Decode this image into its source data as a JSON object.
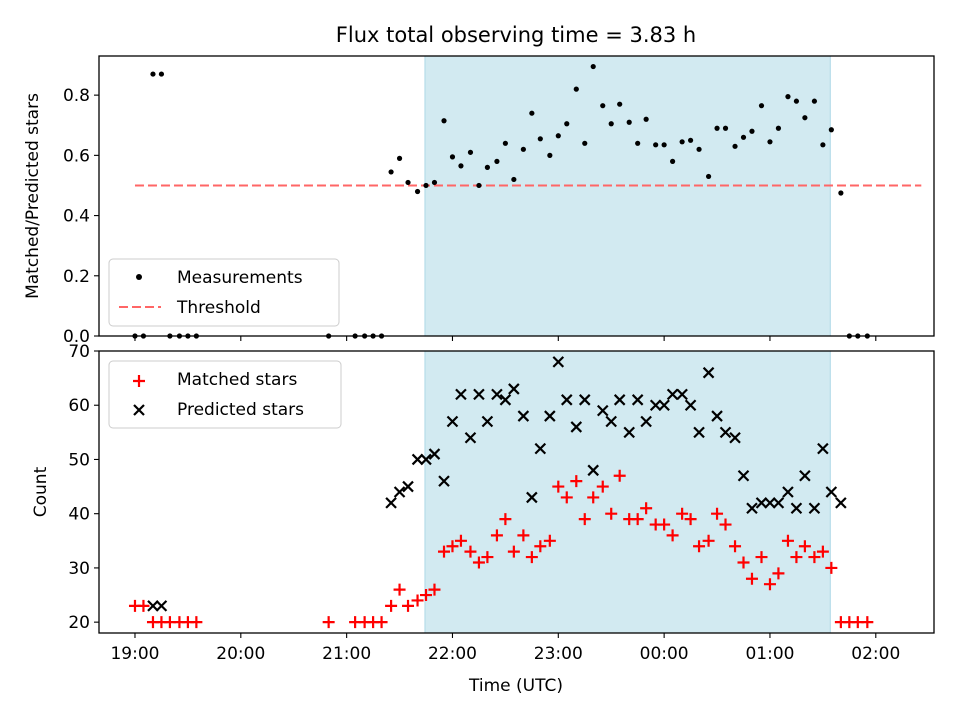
{
  "title": "Flux total observing time = 3.83 h",
  "colors": {
    "highlight": "#add8e6",
    "measurement": "#000000",
    "threshold": "#ff6666",
    "matched": "#ff0000",
    "predicted": "#000000"
  },
  "chart_data": [
    {
      "type": "scatter",
      "ylabel": "Matched/Predicted stars",
      "ylim": [
        0,
        0.93
      ],
      "yticks": [
        "0.0",
        "0.2",
        "0.4",
        "0.6",
        "0.8"
      ],
      "ytick_values": [
        0,
        0.2,
        0.4,
        0.6,
        0.8
      ],
      "xlim_hours": [
        18.66,
        26.55
      ],
      "highlight_span_hours": [
        21.74,
        25.57
      ],
      "legend": {
        "placement": "lower-left",
        "entries": [
          "Measurements",
          "Threshold"
        ]
      },
      "threshold": {
        "name": "Threshold",
        "value": 0.5,
        "x_range_hours": [
          19.0,
          26.43
        ]
      },
      "series": [
        {
          "name": "Measurements",
          "x": [
            19.0,
            19.08,
            19.17,
            19.25,
            19.33,
            19.42,
            19.5,
            19.58,
            20.83,
            21.08,
            21.17,
            21.25,
            21.33,
            21.42,
            21.5,
            21.58,
            21.67,
            21.75,
            21.83,
            21.92,
            22.0,
            22.08,
            22.17,
            22.25,
            22.33,
            22.42,
            22.5,
            22.58,
            22.67,
            22.75,
            22.83,
            22.92,
            23.0,
            23.08,
            23.17,
            23.25,
            23.33,
            23.42,
            23.5,
            23.58,
            23.67,
            23.75,
            23.83,
            23.92,
            24.0,
            24.08,
            24.17,
            24.25,
            24.33,
            24.42,
            24.5,
            24.58,
            24.67,
            24.75,
            24.83,
            24.92,
            25.0,
            25.08,
            25.17,
            25.25,
            25.33,
            25.42,
            25.5,
            25.58,
            25.67,
            25.75,
            25.83,
            25.92
          ],
          "y": [
            0,
            0,
            0.87,
            0.87,
            0,
            0,
            0,
            0,
            0,
            0,
            0,
            0,
            0,
            0.545,
            0.59,
            0.51,
            0.48,
            0.5,
            0.51,
            0.715,
            0.595,
            0.565,
            0.61,
            0.5,
            0.56,
            0.58,
            0.64,
            0.52,
            0.62,
            0.74,
            0.655,
            0.6,
            0.665,
            0.705,
            0.82,
            0.64,
            0.895,
            0.765,
            0.705,
            0.77,
            0.71,
            0.64,
            0.72,
            0.635,
            0.635,
            0.58,
            0.645,
            0.65,
            0.62,
            0.53,
            0.69,
            0.69,
            0.63,
            0.66,
            0.68,
            0.765,
            0.645,
            0.69,
            0.795,
            0.78,
            0.725,
            0.78,
            0.635,
            0.685,
            0.475,
            0,
            0,
            0
          ]
        }
      ]
    },
    {
      "type": "scatter",
      "xlabel": "Time (UTC)",
      "ylabel": "Count",
      "ylim": [
        18,
        70
      ],
      "yticks": [
        "20",
        "30",
        "40",
        "50",
        "60",
        "70"
      ],
      "ytick_values": [
        20,
        30,
        40,
        50,
        60,
        70
      ],
      "xticks": [
        "19:00",
        "20:00",
        "21:00",
        "22:00",
        "23:00",
        "00:00",
        "01:00",
        "02:00"
      ],
      "xtick_hours": [
        19,
        20,
        21,
        22,
        23,
        24,
        25,
        26
      ],
      "xlim_hours": [
        18.66,
        26.55
      ],
      "highlight_span_hours": [
        21.74,
        25.57
      ],
      "legend": {
        "placement": "upper-left",
        "entries": [
          "Matched stars",
          "Predicted stars"
        ]
      },
      "series": [
        {
          "name": "Matched stars",
          "x": [
            19.0,
            19.08,
            19.17,
            19.25,
            19.33,
            19.42,
            19.5,
            19.58,
            20.83,
            21.08,
            21.17,
            21.25,
            21.33,
            21.42,
            21.5,
            21.58,
            21.67,
            21.75,
            21.83,
            21.92,
            22.0,
            22.08,
            22.17,
            22.25,
            22.33,
            22.42,
            22.5,
            22.58,
            22.67,
            22.75,
            22.83,
            22.92,
            23.0,
            23.08,
            23.17,
            23.25,
            23.33,
            23.42,
            23.5,
            23.58,
            23.67,
            23.75,
            23.83,
            23.92,
            24.0,
            24.08,
            24.17,
            24.25,
            24.33,
            24.42,
            24.5,
            24.58,
            24.67,
            24.75,
            24.83,
            24.92,
            25.0,
            25.08,
            25.17,
            25.25,
            25.33,
            25.42,
            25.5,
            25.58,
            25.67,
            25.75,
            25.83,
            25.92
          ],
          "y": [
            23,
            23,
            20,
            20,
            20,
            20,
            20,
            20,
            20,
            20,
            20,
            20,
            20,
            23,
            26,
            23,
            24,
            25,
            26,
            33,
            34,
            35,
            33,
            31,
            32,
            36,
            39,
            33,
            36,
            32,
            34,
            35,
            45,
            43,
            46,
            39,
            43,
            45,
            40,
            47,
            39,
            39,
            41,
            38,
            38,
            36,
            40,
            39,
            34,
            35,
            40,
            38,
            34,
            31,
            28,
            32,
            27,
            29,
            35,
            32,
            34,
            32,
            33,
            30,
            20,
            20,
            20,
            20
          ]
        },
        {
          "name": "Predicted stars",
          "x": [
            19.17,
            19.25,
            21.42,
            21.5,
            21.58,
            21.67,
            21.75,
            21.83,
            21.92,
            22.0,
            22.08,
            22.17,
            22.25,
            22.33,
            22.42,
            22.5,
            22.58,
            22.67,
            22.75,
            22.83,
            22.92,
            23.0,
            23.08,
            23.17,
            23.25,
            23.33,
            23.42,
            23.5,
            23.58,
            23.67,
            23.75,
            23.83,
            23.92,
            24.0,
            24.08,
            24.17,
            24.25,
            24.33,
            24.42,
            24.5,
            24.58,
            24.67,
            24.75,
            24.83,
            24.92,
            25.0,
            25.08,
            25.17,
            25.25,
            25.33,
            25.42,
            25.5,
            25.58,
            25.67
          ],
          "y": [
            23,
            23,
            42,
            44,
            45,
            50,
            50,
            51,
            46,
            57,
            62,
            54,
            62,
            57,
            62,
            61,
            63,
            58,
            43,
            52,
            58,
            68,
            61,
            56,
            61,
            48,
            59,
            57,
            61,
            55,
            61,
            57,
            60,
            60,
            62,
            62,
            60,
            55,
            66,
            58,
            55,
            54,
            47,
            41,
            42,
            42,
            42,
            44,
            41,
            47,
            41,
            52,
            44,
            42
          ]
        }
      ]
    }
  ]
}
